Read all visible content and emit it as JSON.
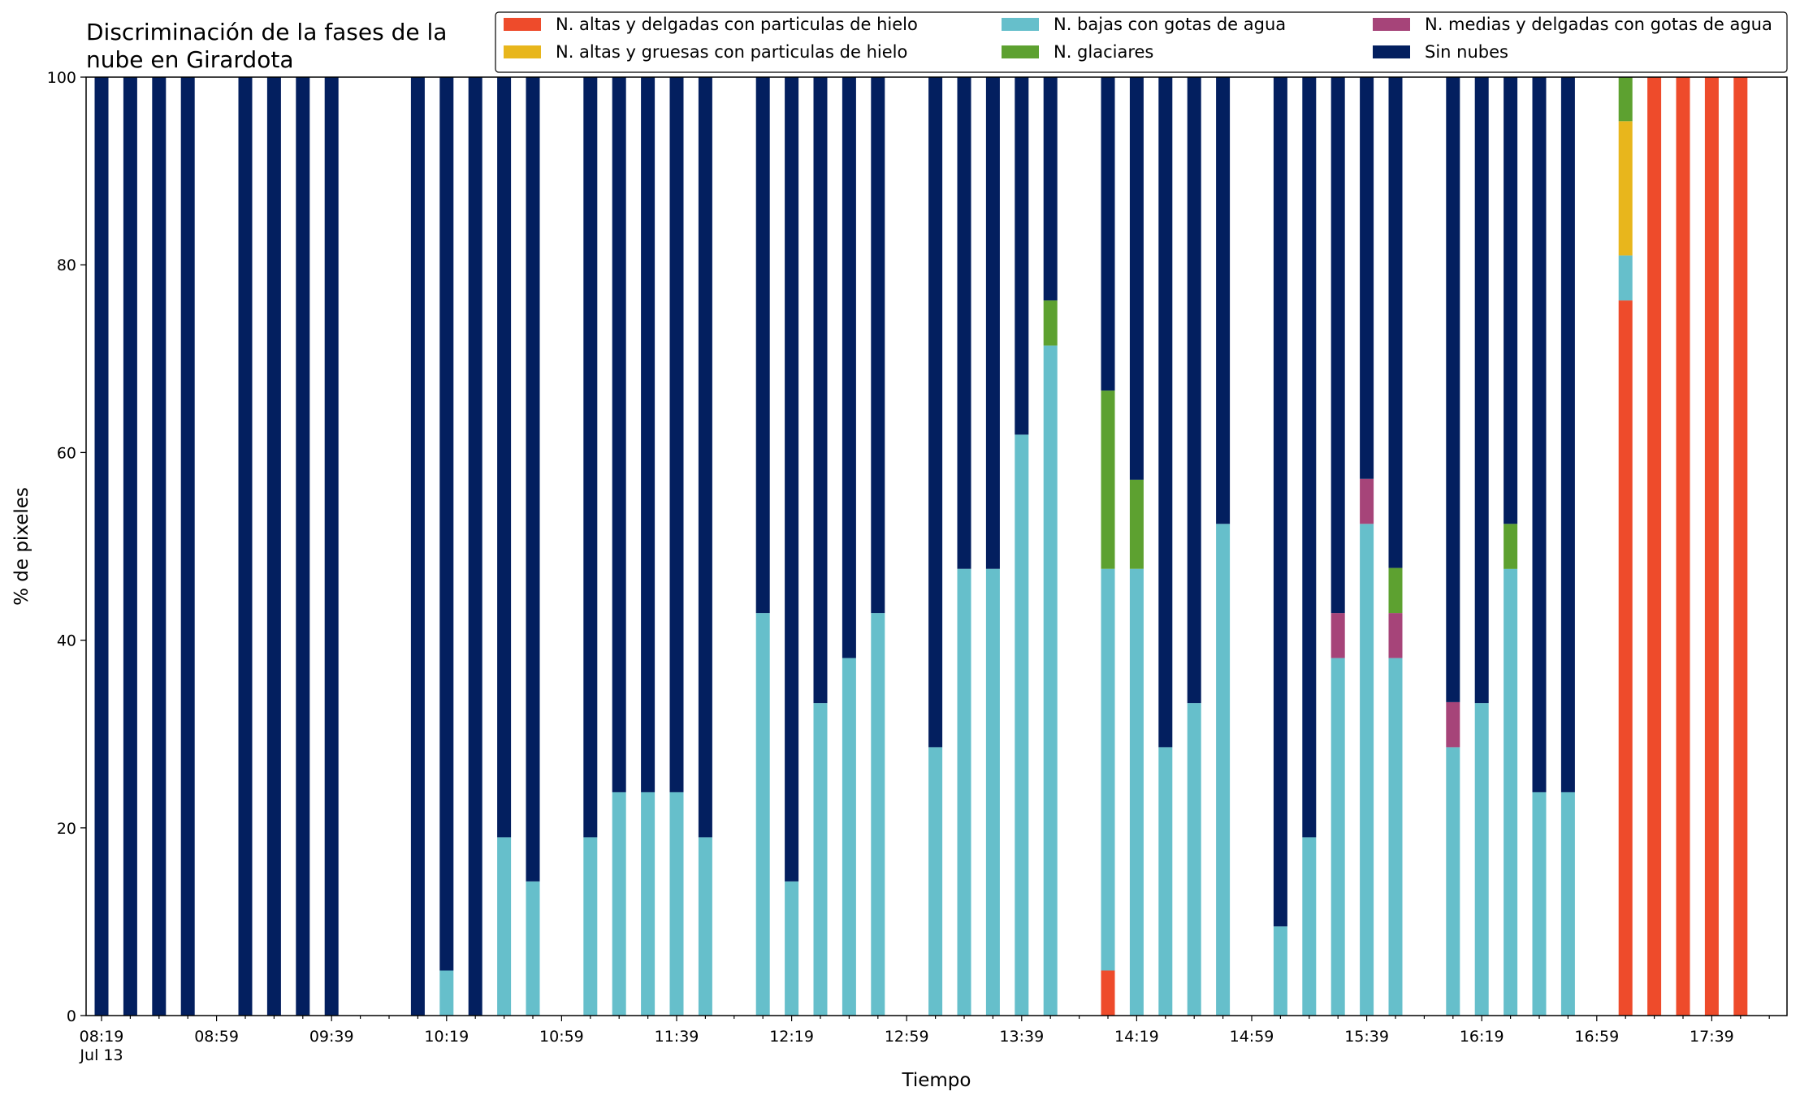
{
  "chart_data": {
    "type": "bar",
    "stacked": true,
    "title_lines": [
      "Discriminación de la fases de la",
      "nube en Girardota"
    ],
    "xlabel": "Tiempo",
    "ylabel": "% de pixeles",
    "ylim": [
      0,
      100
    ],
    "yticks": [
      0,
      20,
      40,
      60,
      80,
      100
    ],
    "grid": false,
    "legend_position": "top-right",
    "date_label": "Jul 13",
    "x_start": "08:19",
    "x_end": "17:59",
    "x_major_ticks": [
      "08:19",
      "08:59",
      "09:39",
      "10:19",
      "10:59",
      "11:39",
      "12:19",
      "12:59",
      "13:39",
      "14:19",
      "14:59",
      "15:39",
      "16:19",
      "16:59",
      "17:39"
    ],
    "times": [
      "08:19",
      "08:29",
      "08:39",
      "08:49",
      "09:09",
      "09:19",
      "09:29",
      "09:39",
      "10:09",
      "10:19",
      "10:29",
      "10:39",
      "10:49",
      "11:09",
      "11:19",
      "11:29",
      "11:39",
      "11:49",
      "12:09",
      "12:19",
      "12:29",
      "12:39",
      "12:49",
      "13:09",
      "13:19",
      "13:29",
      "13:39",
      "13:49",
      "14:09",
      "14:19",
      "14:29",
      "14:39",
      "14:49",
      "15:09",
      "15:19",
      "15:29",
      "15:39",
      "15:49",
      "16:09",
      "16:19",
      "16:29",
      "16:39",
      "16:49",
      "17:09",
      "17:19",
      "17:29",
      "17:39",
      "17:49"
    ],
    "series": [
      {
        "name": "N. altas y delgadas con particulas de hielo",
        "color": "#EE4B2B",
        "values": [
          0,
          0,
          0,
          0,
          0,
          0,
          0,
          0,
          0,
          0,
          0,
          0,
          0,
          0,
          0,
          0,
          0,
          0,
          0,
          0,
          0,
          0,
          0,
          0,
          0,
          0,
          0,
          0,
          4.8,
          0,
          0,
          0,
          0,
          0,
          0,
          0,
          0,
          0,
          0,
          0,
          0,
          0,
          0,
          76.2,
          100,
          100,
          100,
          100
        ]
      },
      {
        "name": "N. bajas con gotas de agua",
        "color": "#66BFCB",
        "values": [
          0,
          0,
          0,
          0,
          0,
          0,
          0,
          0,
          0,
          4.8,
          0,
          19,
          14.3,
          19,
          23.8,
          23.8,
          23.8,
          19,
          42.9,
          14.3,
          33.3,
          38.1,
          42.9,
          28.6,
          47.6,
          47.6,
          61.9,
          71.4,
          42.8,
          47.6,
          28.6,
          33.3,
          52.4,
          9.5,
          19,
          38.1,
          52.4,
          38.1,
          28.6,
          33.3,
          47.6,
          23.8,
          23.8,
          4.8,
          0,
          0,
          0,
          0
        ]
      },
      {
        "name": "N. medias y delgadas con gotas de agua",
        "color": "#A64479",
        "values": [
          0,
          0,
          0,
          0,
          0,
          0,
          0,
          0,
          0,
          0,
          0,
          0,
          0,
          0,
          0,
          0,
          0,
          0,
          0,
          0,
          0,
          0,
          0,
          0,
          0,
          0,
          0,
          0,
          0,
          0,
          0,
          0,
          0,
          0,
          0,
          4.8,
          4.8,
          4.8,
          4.8,
          0,
          0,
          0,
          0,
          0,
          0,
          0,
          0,
          0
        ]
      },
      {
        "name": "N. altas y gruesas con particulas de hielo",
        "color": "#E8B61C",
        "values": [
          0,
          0,
          0,
          0,
          0,
          0,
          0,
          0,
          0,
          0,
          0,
          0,
          0,
          0,
          0,
          0,
          0,
          0,
          0,
          0,
          0,
          0,
          0,
          0,
          0,
          0,
          0,
          0,
          0,
          0,
          0,
          0,
          0,
          0,
          0,
          0,
          0,
          0,
          0,
          0,
          0,
          0,
          0,
          14.3,
          0,
          0,
          0,
          0
        ]
      },
      {
        "name": "N. glaciares",
        "color": "#5DA130",
        "values": [
          0,
          0,
          0,
          0,
          0,
          0,
          0,
          0,
          0,
          0,
          0,
          0,
          0,
          0,
          0,
          0,
          0,
          0,
          0,
          0,
          0,
          0,
          0,
          0,
          0,
          0,
          0,
          4.8,
          19,
          9.5,
          0,
          0,
          0,
          0,
          0,
          0,
          0,
          4.8,
          0,
          0,
          4.8,
          0,
          0,
          4.7,
          0,
          0,
          0,
          0
        ]
      },
      {
        "name": "Sin nubes",
        "color": "#031F5F",
        "values": [
          100,
          100,
          100,
          100,
          100,
          100,
          100,
          100,
          100,
          95.2,
          100,
          81,
          85.7,
          81,
          76.2,
          76.2,
          76.2,
          81,
          57.1,
          85.7,
          66.7,
          61.9,
          57.1,
          71.4,
          52.4,
          52.4,
          38.1,
          23.8,
          33.4,
          42.9,
          71.4,
          66.7,
          47.6,
          90.5,
          81,
          57.1,
          42.8,
          52.3,
          66.6,
          66.7,
          47.6,
          76.2,
          76.2,
          0,
          0,
          0,
          0,
          0
        ]
      }
    ],
    "legend_order": [
      "N. altas y delgadas con particulas de hielo",
      "N. altas y gruesas con particulas de hielo",
      "N. bajas con gotas de agua",
      "N. glaciares",
      "N. medias y delgadas con gotas de agua",
      "Sin nubes"
    ]
  }
}
